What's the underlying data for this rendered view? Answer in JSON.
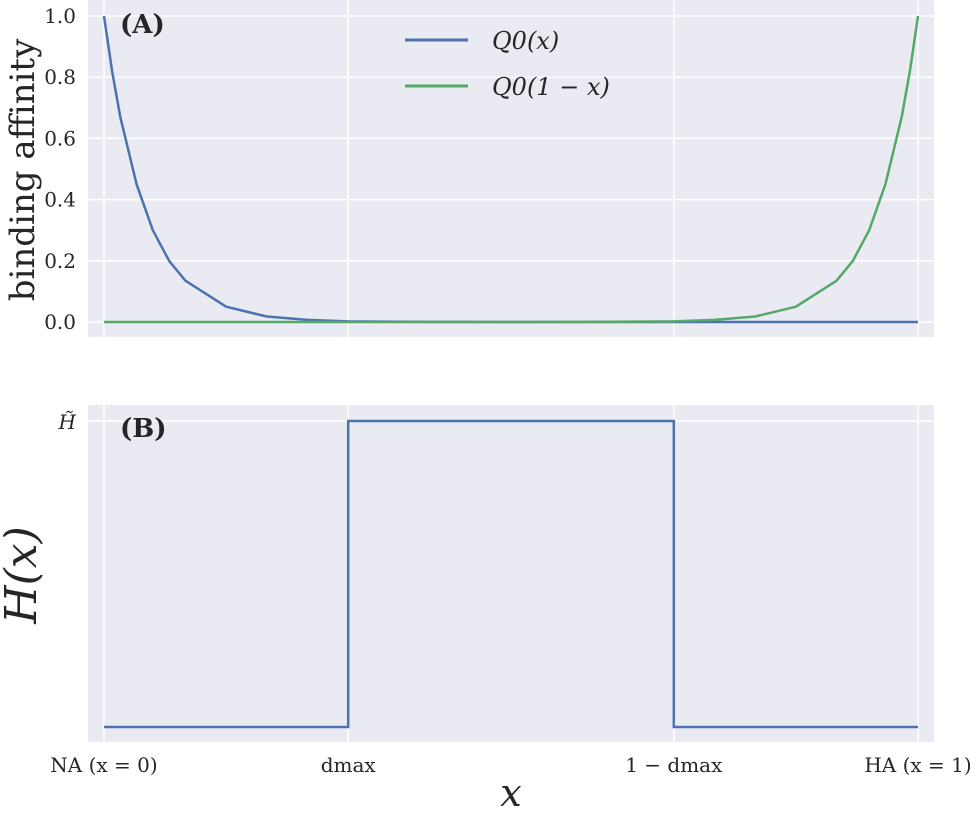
{
  "colors": {
    "q0": "#4c72b0",
    "q0rev": "#55a868",
    "axes_bg": "#eaeaf2",
    "grid": "#ffffff"
  },
  "chart_data": [
    {
      "panel": "(A)",
      "type": "line",
      "ylabel": "binding affinity",
      "ylim": [
        0,
        1.0
      ],
      "xlim": [
        0,
        1
      ],
      "yticks": [
        "0.0",
        "0.2",
        "0.4",
        "0.6",
        "0.8",
        "1.0"
      ],
      "grid": true,
      "legend_position": "top-center",
      "series": [
        {
          "name": "Q0(x)",
          "x": [
            0,
            0.01,
            0.02,
            0.04,
            0.06,
            0.08,
            0.1,
            0.15,
            0.2,
            0.25,
            0.3,
            0.4,
            0.5,
            0.6,
            0.7,
            0.8,
            0.9,
            1.0
          ],
          "y": [
            1.0,
            0.82,
            0.67,
            0.45,
            0.3,
            0.2,
            0.135,
            0.05,
            0.018,
            0.007,
            0.002,
            0.0003,
            0.0,
            0.0,
            0.0,
            0.0,
            0.0,
            0.0
          ]
        },
        {
          "name": "Q0(1 − x)",
          "x": [
            0,
            0.1,
            0.2,
            0.3,
            0.4,
            0.5,
            0.6,
            0.7,
            0.75,
            0.8,
            0.85,
            0.9,
            0.92,
            0.94,
            0.96,
            0.98,
            0.99,
            1.0
          ],
          "y": [
            0.0,
            0.0,
            0.0,
            0.0,
            0.0,
            0.0,
            0.0003,
            0.002,
            0.007,
            0.018,
            0.05,
            0.135,
            0.2,
            0.3,
            0.45,
            0.67,
            0.82,
            1.0
          ]
        }
      ]
    },
    {
      "panel": "(B)",
      "type": "line",
      "ylabel": "H(x)",
      "ytick_label": "H̃",
      "xlabel": "x",
      "xlim": [
        0,
        1
      ],
      "ylim": [
        0,
        1
      ],
      "xticks": [
        "NA (x = 0)",
        "dmax",
        "1 − dmax",
        "HA (x = 1)"
      ],
      "xtick_values": [
        0,
        0.3,
        0.7,
        1.0
      ],
      "grid": true,
      "series": [
        {
          "x": [
            0,
            0.3,
            0.3,
            0.7,
            0.7,
            1.0
          ],
          "y": [
            0,
            0,
            1,
            1,
            0,
            0
          ]
        }
      ]
    }
  ]
}
